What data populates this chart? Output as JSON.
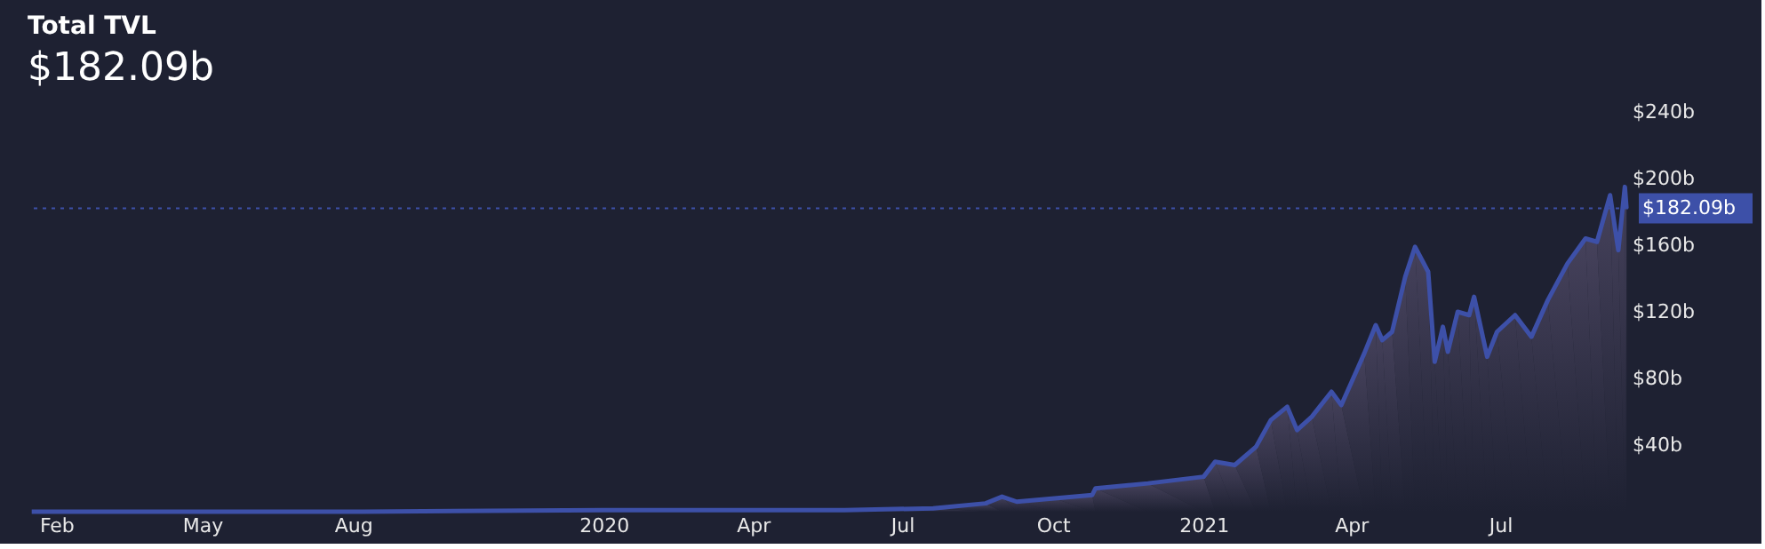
{
  "chart_data": {
    "type": "area",
    "title": "Total TVL",
    "subtitle": "$182.09b",
    "x": [
      "2019-01-17",
      "2019-08-07",
      "2020-01-01",
      "2020-04-01",
      "2020-05-27",
      "2020-07-20",
      "2020-08-21",
      "2020-08-31",
      "2020-09-09",
      "2020-10-02",
      "2020-10-25",
      "2020-10-27",
      "2020-11-28",
      "2021-01-01",
      "2021-01-08",
      "2021-01-20",
      "2021-02-02",
      "2021-02-11",
      "2021-02-21",
      "2021-02-27",
      "2021-03-08",
      "2021-03-20",
      "2021-03-26",
      "2021-04-09",
      "2021-04-16",
      "2021-04-20",
      "2021-04-26",
      "2021-05-04",
      "2021-05-10",
      "2021-05-18",
      "2021-05-22",
      "2021-05-27",
      "2021-05-30",
      "2021-06-05",
      "2021-06-12",
      "2021-06-15",
      "2021-06-23",
      "2021-06-29",
      "2021-07-10",
      "2021-07-20",
      "2021-07-30",
      "2021-08-11",
      "2021-08-22",
      "2021-08-29",
      "2021-09-06",
      "2021-09-11",
      "2021-09-15",
      "2021-09-16"
    ],
    "series": [
      {
        "color": "#3d50a8",
        "values": [
          0,
          0,
          1,
          1,
          1,
          2,
          5,
          9,
          6,
          8,
          10,
          14,
          17,
          21,
          30,
          28,
          39,
          55,
          63,
          49,
          57,
          72,
          64,
          95,
          112,
          103,
          108,
          141,
          159,
          144,
          90,
          111,
          96,
          120,
          118,
          129,
          93,
          108,
          118,
          105,
          127,
          149,
          164,
          162,
          190,
          157,
          195,
          182.09
        ]
      }
    ],
    "xlim": [
      "2019-01-15",
      "2021-09-17"
    ],
    "xticks": [
      {
        "value": "2019-02-01",
        "label": "Feb"
      },
      {
        "value": "2019-05-01",
        "label": "May"
      },
      {
        "value": "2019-08-01",
        "label": "Aug"
      },
      {
        "value": "2020-01-01",
        "label": "2020"
      },
      {
        "value": "2020-04-01",
        "label": "Apr"
      },
      {
        "value": "2020-07-01",
        "label": "Jul"
      },
      {
        "value": "2020-10-01",
        "label": "Oct"
      },
      {
        "value": "2021-01-01",
        "label": "2021"
      },
      {
        "value": "2021-04-01",
        "label": "Apr"
      },
      {
        "value": "2021-07-01",
        "label": "Jul"
      }
    ],
    "ylim": [
      0,
      240
    ],
    "yticks": [
      {
        "value": 40,
        "label": "$40b"
      },
      {
        "value": 80,
        "label": "$80b"
      },
      {
        "value": 120,
        "label": "$120b"
      },
      {
        "value": 160,
        "label": "$160b"
      },
      {
        "value": 200,
        "label": "$200b"
      },
      {
        "value": 240,
        "label": "$240b"
      }
    ],
    "ref_lines": [
      {
        "axis": "y",
        "value": 182.09,
        "label": "$182.09b",
        "color": "#3d50a8",
        "line_style": "dotted"
      }
    ],
    "grid": false
  }
}
